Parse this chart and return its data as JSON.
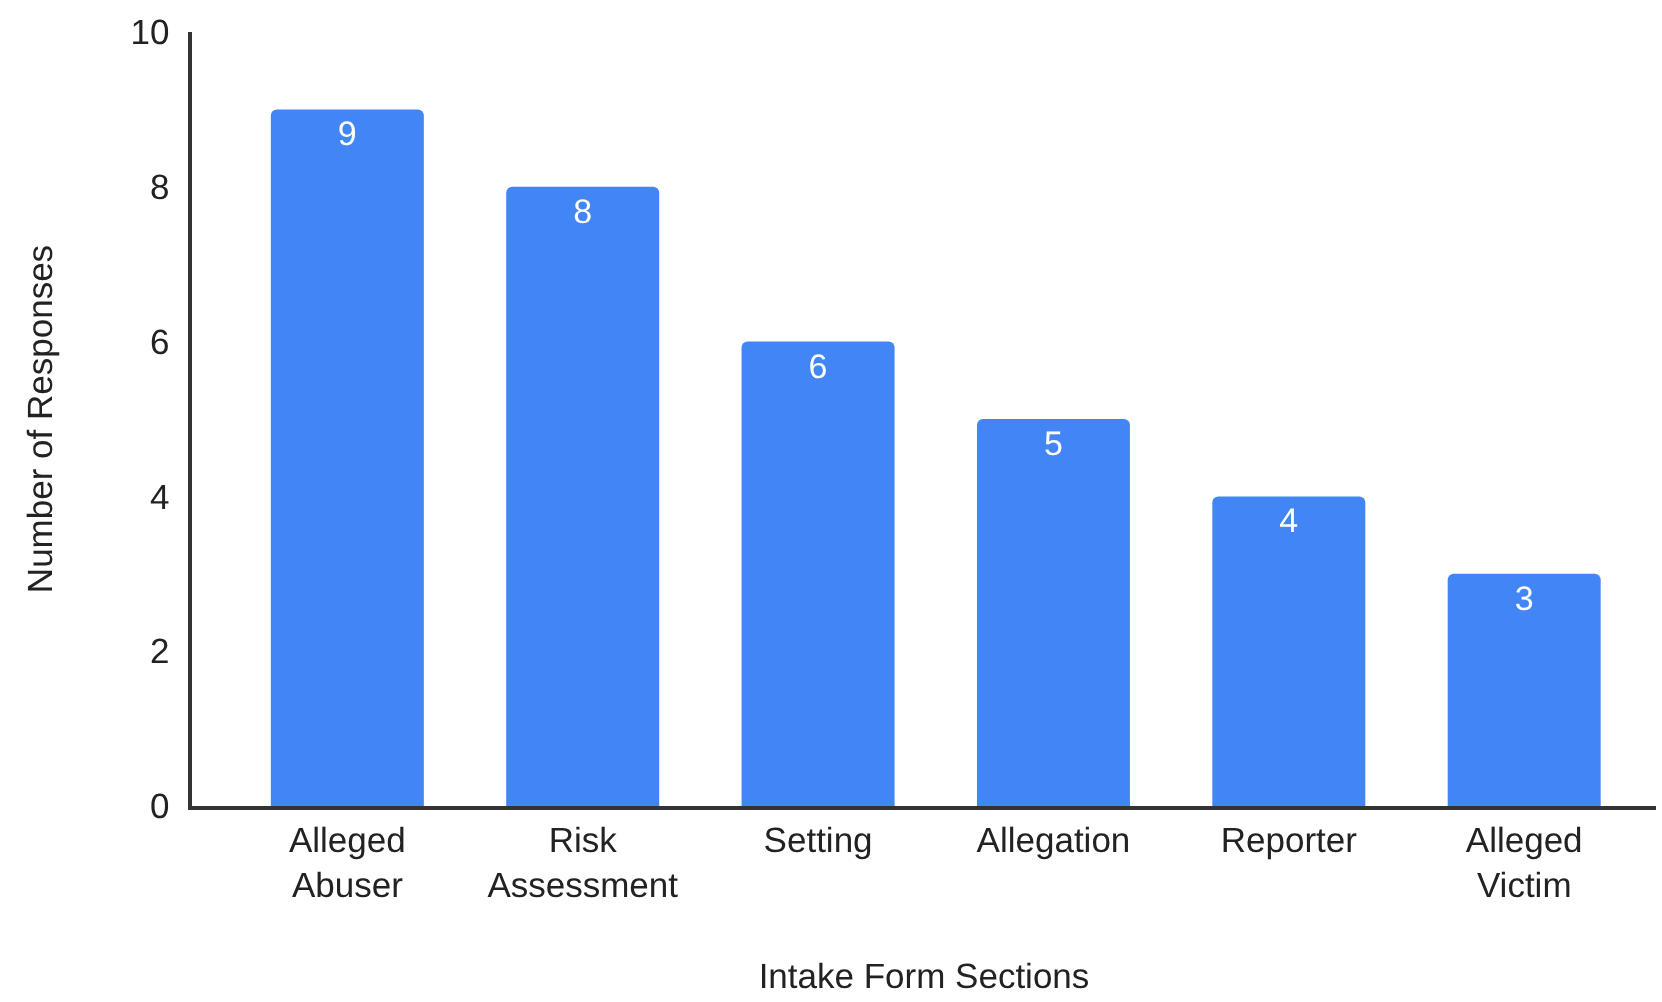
{
  "chart_data": {
    "type": "bar",
    "xlabel": "Intake Form Sections",
    "ylabel": "Number of Responses",
    "categories": [
      "Alleged Abuser",
      "Risk Assessment",
      "Setting",
      "Allegation",
      "Reporter",
      "Alleged Victim"
    ],
    "values": [
      9,
      8,
      6,
      5,
      4,
      3
    ],
    "color": "#4285f4",
    "ylim": [
      0,
      10
    ],
    "yticks": [
      0,
      2,
      4,
      6,
      8,
      10
    ],
    "grid": false,
    "legend": false,
    "data_labels": true
  }
}
